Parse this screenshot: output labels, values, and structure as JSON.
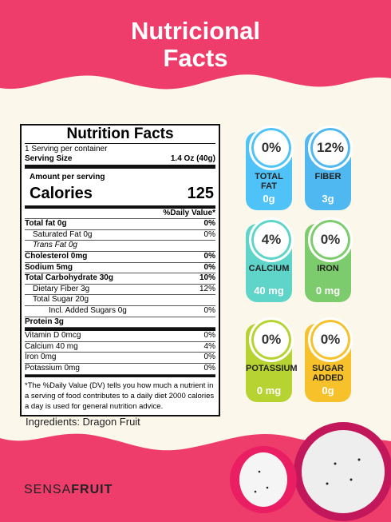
{
  "header": {
    "title_lines": [
      "Nutricional",
      "Facts"
    ]
  },
  "label": {
    "title": "Nutrition Facts",
    "servings": "1 Serving per container",
    "serving_size_label": "Serving Size",
    "serving_size": "1.4 Oz (40g)",
    "amount_per_serving": "Amount per serving",
    "calories_label": "Calories",
    "calories": "125",
    "dv_header": "%Daily Value*",
    "rows": [
      {
        "label": "Total fat  0g",
        "dv": "0%"
      },
      {
        "label": "Saturated Fat  0g",
        "dv": "0%"
      },
      {
        "label": "Trans Fat  0g"
      },
      {
        "label": "Cholesterol  0mg",
        "dv": "0%"
      },
      {
        "label": "Sodium  5mg",
        "dv": "0%"
      },
      {
        "label": "Total Carbohydrate 30g",
        "dv": "10%"
      },
      {
        "label": "Dietary Fiber  3g",
        "dv": "12%"
      },
      {
        "label": "Total Sugar  20g"
      },
      {
        "label": "Incl. Added Sugars  0g",
        "dv": "0%"
      },
      {
        "label": "Protein  3g"
      }
    ],
    "vitamins": [
      {
        "label": "Vitamin D   0mcg",
        "dv": "0%"
      },
      {
        "label": "Calcium   40 mg",
        "dv": "4%"
      },
      {
        "label": "Iron   0mg",
        "dv": "0%"
      },
      {
        "label": "Potassium   0mg",
        "dv": "0%"
      }
    ],
    "footnote": "*The %Daily Value (DV) tells you how much a nutrient in a serving of food contributes to a daily diet 2000 calories a day is used for general nutrition advice."
  },
  "ingredients": "Ingredients: Dragon Fruit",
  "badges": [
    {
      "percent": "0%",
      "name": "TOTAL FAT",
      "amount": "0g"
    },
    {
      "percent": "12%",
      "name": "FIBER",
      "amount": "3g"
    },
    {
      "percent": "4%",
      "name": "CALCIUM",
      "amount": "40 mg"
    },
    {
      "percent": "0%",
      "name": "IRON",
      "amount": "0 mg"
    },
    {
      "percent": "0%",
      "name": "POTASSIUM",
      "amount": "0 mg"
    },
    {
      "percent": "0%",
      "name": "SUGAR ADDED",
      "amount": "0g"
    }
  ],
  "brand": {
    "light": "SENSA",
    "bold": "FRUIT"
  }
}
